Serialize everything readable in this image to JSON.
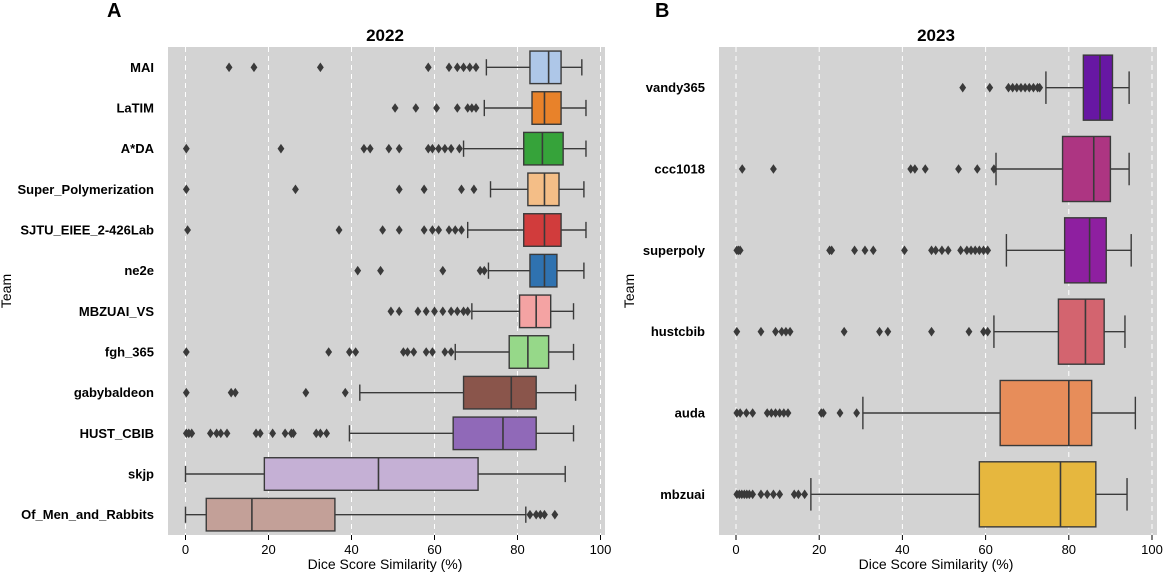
{
  "chart_data": [
    {
      "type": "box",
      "panel_label": "A",
      "title": "2022",
      "xlabel": "Dice Score Similarity (%)",
      "ylabel": "Team",
      "xlim": [
        -4,
        101
      ],
      "xticks": [
        0,
        20,
        40,
        60,
        80,
        100
      ],
      "grid": true,
      "teams": [
        {
          "name": "MAI",
          "color": "#aec7e8",
          "whisker_low": 72.5,
          "q1": 83,
          "median": 87.5,
          "q3": 90.5,
          "whisker_high": 95.5,
          "outliers": [
            10.5,
            16.5,
            32.5,
            58.5,
            63.5,
            65.5,
            67,
            68.5,
            70
          ]
        },
        {
          "name": "LaTIM",
          "color": "#e8822a",
          "whisker_low": 72,
          "q1": 83.5,
          "median": 86.5,
          "q3": 90.5,
          "whisker_high": 96.5,
          "outliers": [
            50.5,
            55.5,
            60.5,
            65.5,
            68,
            69,
            70
          ]
        },
        {
          "name": "A*DA",
          "color": "#36a33a",
          "whisker_low": 67,
          "q1": 81.5,
          "median": 86,
          "q3": 91,
          "whisker_high": 96.5,
          "outliers": [
            0.2,
            23,
            43,
            44.5,
            49,
            51.5,
            58.5,
            59.5,
            61,
            62.5,
            64,
            66
          ]
        },
        {
          "name": "Super_Polymerization",
          "color": "#f4be87",
          "whisker_low": 73.5,
          "q1": 82.5,
          "median": 86.5,
          "q3": 90,
          "whisker_high": 96,
          "outliers": [
            0.2,
            26.5,
            51.5,
            57.5,
            66.5,
            69.5
          ]
        },
        {
          "name": "SJTU_EIEE_2-426Lab",
          "color": "#d13c3c",
          "whisker_low": 68,
          "q1": 81.5,
          "median": 86.5,
          "q3": 90.5,
          "whisker_high": 96.5,
          "outliers": [
            0.5,
            37,
            47.5,
            51.5,
            57.5,
            59.5,
            61,
            63.5,
            65,
            66.5
          ]
        },
        {
          "name": "ne2e",
          "color": "#2f72b0",
          "whisker_low": 73,
          "q1": 83,
          "median": 86.5,
          "q3": 89.5,
          "whisker_high": 96,
          "outliers": [
            41.5,
            47,
            62,
            71,
            72
          ]
        },
        {
          "name": "MBZUAI_VS",
          "color": "#f4a3a3",
          "whisker_low": 69,
          "q1": 80.5,
          "median": 84.5,
          "q3": 88,
          "whisker_high": 93.5,
          "outliers": [
            49.5,
            51.5,
            56,
            58,
            60,
            62,
            64,
            65.5,
            67,
            68
          ]
        },
        {
          "name": "fgh_365",
          "color": "#96d889",
          "whisker_low": 65,
          "q1": 78,
          "median": 82.5,
          "q3": 87.5,
          "whisker_high": 93.5,
          "outliers": [
            0.2,
            34.5,
            39.5,
            41,
            52.5,
            53.5,
            55,
            58,
            59.5,
            62.5,
            64
          ]
        },
        {
          "name": "gabybaldeon",
          "color": "#8a554b",
          "whisker_low": 42,
          "q1": 67,
          "median": 78.5,
          "q3": 84.5,
          "whisker_high": 94,
          "outliers": [
            0.2,
            11,
            12,
            29,
            38.5
          ]
        },
        {
          "name": "HUST_CBIB",
          "color": "#9069b8",
          "whisker_low": 39.5,
          "q1": 64.5,
          "median": 76.5,
          "q3": 84.5,
          "whisker_high": 93.5,
          "outliers": [
            0.2,
            0.8,
            1.5,
            6,
            7.5,
            8.5,
            10,
            17,
            18,
            21,
            24,
            25.5,
            26,
            31.5,
            32.5,
            34
          ]
        },
        {
          "name": "skjp",
          "color": "#c5b0d5",
          "whisker_low": 0,
          "q1": 19,
          "median": 46.5,
          "q3": 70.5,
          "whisker_high": 91.5,
          "outliers": []
        },
        {
          "name": "Of_Men_and_Rabbits",
          "color": "#c3a098",
          "whisker_low": 0,
          "q1": 5,
          "median": 16,
          "q3": 36,
          "whisker_high": 82,
          "outliers": [
            83,
            84.5,
            85.5,
            86.5,
            89
          ]
        }
      ]
    },
    {
      "type": "box",
      "panel_label": "B",
      "title": "2023",
      "xlabel": "Dice Score Similarity (%)",
      "ylabel": "Team",
      "xlim": [
        -4,
        101
      ],
      "xticks": [
        0,
        20,
        40,
        60,
        80,
        100
      ],
      "grid": true,
      "teams": [
        {
          "name": "vandy365",
          "color": "#6717a3",
          "whisker_low": 74.5,
          "q1": 83.5,
          "median": 87.5,
          "q3": 90.5,
          "whisker_high": 94.5,
          "outliers": [
            54.5,
            61,
            65.5,
            66.5,
            67.5,
            68.5,
            69.5,
            70.5,
            71.5,
            72.5,
            73
          ]
        },
        {
          "name": "ccc1018",
          "color": "#ad3582",
          "whisker_low": 62.5,
          "q1": 78.5,
          "median": 86,
          "q3": 90,
          "whisker_high": 94.5,
          "outliers": [
            1.5,
            9,
            42,
            43,
            45.5,
            53.5,
            58,
            62
          ]
        },
        {
          "name": "superpoly",
          "color": "#8e1fa0",
          "whisker_low": 65,
          "q1": 79,
          "median": 85,
          "q3": 89,
          "whisker_high": 95,
          "outliers": [
            0.2,
            0.6,
            1,
            22.5,
            23,
            28.5,
            31,
            33,
            40.5,
            47,
            48,
            49.5,
            51,
            54,
            55.5,
            56.5,
            57.5,
            58.5,
            59.5,
            60.5
          ]
        },
        {
          "name": "hustcbib",
          "color": "#d3646f",
          "whisker_low": 62,
          "q1": 77.5,
          "median": 84,
          "q3": 88.5,
          "whisker_high": 93.5,
          "outliers": [
            0.2,
            6,
            9.5,
            11,
            12,
            13,
            26,
            34.5,
            36.5,
            47,
            56,
            59.5,
            60.5
          ]
        },
        {
          "name": "auda",
          "color": "#e78d5a",
          "whisker_low": 30.5,
          "q1": 63.5,
          "median": 80,
          "q3": 85.5,
          "whisker_high": 96,
          "outliers": [
            0.2,
            1,
            2.5,
            4,
            7.5,
            8.5,
            9.5,
            10.5,
            11.5,
            12.5,
            20.5,
            21,
            25,
            29
          ]
        },
        {
          "name": "mbzuai",
          "color": "#e6b73e",
          "whisker_low": 18,
          "q1": 58.5,
          "median": 78,
          "q3": 86.5,
          "whisker_high": 94,
          "outliers": [
            0.2,
            0.8,
            1.4,
            2,
            2.6,
            3.2,
            4,
            6,
            7.5,
            9,
            10.5,
            14,
            15,
            16.5
          ]
        }
      ]
    }
  ]
}
